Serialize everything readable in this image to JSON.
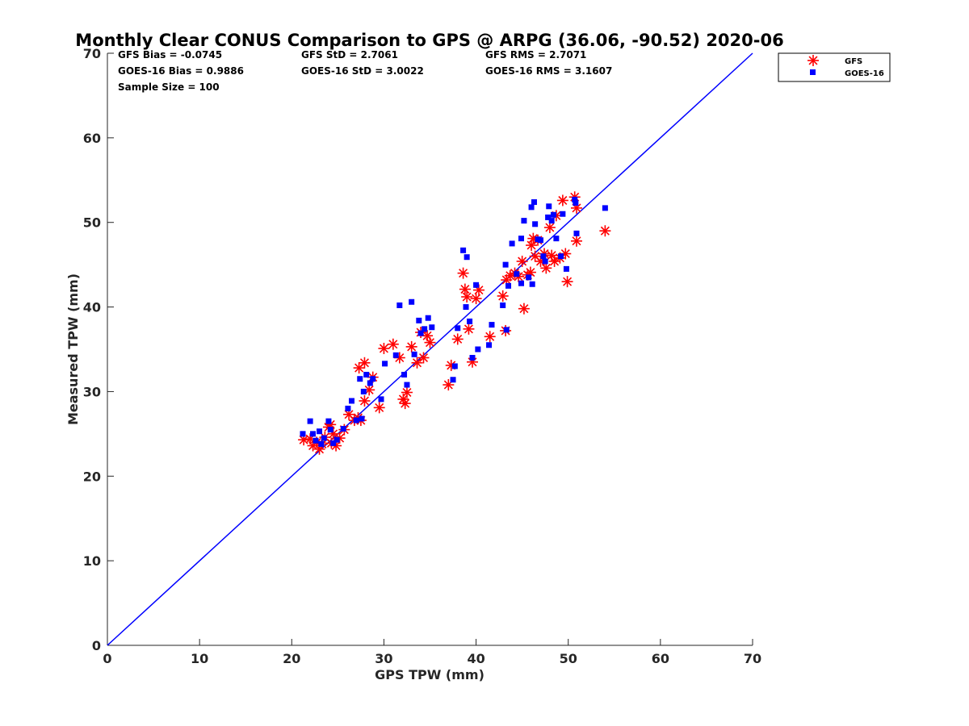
{
  "chart_data": {
    "type": "scatter",
    "title": "Monthly Clear CONUS Comparison to GPS @ ARPG (36.06, -90.52) 2020-06",
    "xlabel": "GPS TPW (mm)",
    "ylabel": "Measured TPW (mm)",
    "xlim": [
      0,
      70
    ],
    "ylim": [
      0,
      70
    ],
    "xticks": [
      "0",
      "10",
      "20",
      "30",
      "40",
      "50",
      "60",
      "70"
    ],
    "yticks": [
      "0",
      "10",
      "20",
      "30",
      "40",
      "50",
      "60",
      "70"
    ],
    "grid": false,
    "legend_position": "top-right outside",
    "stats": {
      "gfs_bias": "GFS Bias = -0.0745",
      "gfs_std": "GFS StD = 2.7061",
      "gfs_rms": "GFS RMS = 2.7071",
      "goes_bias": "GOES-16 Bias = 0.9886",
      "goes_std": "GOES-16 StD = 3.0022",
      "goes_rms": "GOES-16 RMS = 3.1607",
      "sample_size": "Sample Size = 100"
    },
    "reference_line": {
      "name": "1:1",
      "color": "#0000ff",
      "x": [
        0,
        70
      ],
      "y": [
        0,
        70
      ]
    },
    "series": [
      {
        "name": "GFS",
        "marker": "asterisk",
        "color": "#ff0000",
        "points": [
          [
            21.3,
            24.3
          ],
          [
            22.0,
            24.4
          ],
          [
            22.3,
            23.6
          ],
          [
            22.7,
            24.0
          ],
          [
            23.0,
            23.2
          ],
          [
            23.3,
            23.8
          ],
          [
            23.6,
            24.6
          ],
          [
            24.0,
            25.8
          ],
          [
            24.2,
            26.1
          ],
          [
            24.5,
            25.0
          ],
          [
            24.3,
            23.9
          ],
          [
            24.8,
            23.6
          ],
          [
            25.2,
            24.5
          ],
          [
            25.7,
            25.5
          ],
          [
            26.2,
            27.3
          ],
          [
            26.8,
            26.6
          ],
          [
            27.2,
            26.9
          ],
          [
            27.5,
            26.6
          ],
          [
            27.9,
            28.9
          ],
          [
            28.4,
            30.2
          ],
          [
            28.8,
            31.7
          ],
          [
            27.3,
            32.8
          ],
          [
            27.9,
            33.4
          ],
          [
            29.5,
            28.1
          ],
          [
            30.0,
            35.1
          ],
          [
            31.0,
            35.6
          ],
          [
            31.7,
            34.0
          ],
          [
            32.1,
            29.1
          ],
          [
            32.3,
            28.6
          ],
          [
            32.5,
            29.9
          ],
          [
            33.0,
            35.3
          ],
          [
            33.6,
            33.4
          ],
          [
            34.0,
            37.0
          ],
          [
            34.3,
            34.0
          ],
          [
            34.7,
            36.6
          ],
          [
            35.0,
            35.8
          ],
          [
            37.0,
            30.8
          ],
          [
            37.3,
            33.1
          ],
          [
            38.0,
            36.2
          ],
          [
            38.6,
            44.0
          ],
          [
            38.8,
            42.1
          ],
          [
            39.0,
            41.2
          ],
          [
            39.2,
            37.4
          ],
          [
            39.6,
            33.5
          ],
          [
            40.0,
            41.0
          ],
          [
            40.3,
            42.0
          ],
          [
            41.5,
            36.5
          ],
          [
            42.9,
            41.3
          ],
          [
            43.2,
            37.2
          ],
          [
            43.3,
            43.2
          ],
          [
            43.7,
            43.7
          ],
          [
            44.2,
            44.0
          ],
          [
            44.6,
            43.6
          ],
          [
            45.0,
            45.4
          ],
          [
            45.2,
            39.8
          ],
          [
            45.6,
            43.8
          ],
          [
            45.9,
            44.1
          ],
          [
            46.0,
            47.3
          ],
          [
            46.2,
            48.1
          ],
          [
            46.4,
            46.0
          ],
          [
            46.7,
            47.9
          ],
          [
            47.0,
            45.4
          ],
          [
            47.4,
            46.3
          ],
          [
            47.6,
            44.6
          ],
          [
            48.0,
            49.4
          ],
          [
            48.2,
            46.1
          ],
          [
            48.5,
            45.4
          ],
          [
            48.7,
            50.8
          ],
          [
            49.1,
            45.8
          ],
          [
            49.4,
            52.6
          ],
          [
            49.7,
            46.3
          ],
          [
            49.9,
            43.0
          ],
          [
            50.7,
            53.0
          ],
          [
            50.9,
            51.7
          ],
          [
            50.9,
            47.8
          ],
          [
            54.0,
            49.0
          ]
        ]
      },
      {
        "name": "GOES-16",
        "marker": "square",
        "color": "#0000ff",
        "points": [
          [
            21.2,
            25.0
          ],
          [
            22.0,
            26.5
          ],
          [
            22.3,
            25.0
          ],
          [
            22.6,
            24.2
          ],
          [
            23.0,
            25.3
          ],
          [
            23.2,
            23.8
          ],
          [
            23.5,
            24.5
          ],
          [
            24.0,
            26.5
          ],
          [
            24.2,
            25.5
          ],
          [
            24.5,
            23.9
          ],
          [
            24.9,
            24.3
          ],
          [
            25.6,
            25.6
          ],
          [
            26.1,
            28.0
          ],
          [
            26.5,
            28.9
          ],
          [
            27.0,
            26.6
          ],
          [
            27.4,
            31.5
          ],
          [
            27.6,
            26.8
          ],
          [
            27.8,
            30.0
          ],
          [
            28.1,
            32.0
          ],
          [
            28.5,
            31.0
          ],
          [
            28.8,
            31.5
          ],
          [
            29.7,
            29.1
          ],
          [
            30.1,
            33.3
          ],
          [
            31.3,
            34.3
          ],
          [
            31.7,
            40.2
          ],
          [
            32.2,
            32.0
          ],
          [
            32.5,
            30.8
          ],
          [
            33.0,
            40.6
          ],
          [
            33.3,
            34.4
          ],
          [
            33.8,
            38.4
          ],
          [
            34.0,
            36.9
          ],
          [
            34.4,
            37.4
          ],
          [
            34.8,
            38.7
          ],
          [
            35.2,
            37.6
          ],
          [
            37.5,
            31.4
          ],
          [
            37.7,
            33.0
          ],
          [
            38.0,
            37.5
          ],
          [
            38.6,
            46.7
          ],
          [
            38.9,
            40.0
          ],
          [
            39.0,
            45.9
          ],
          [
            39.3,
            38.3
          ],
          [
            39.6,
            34.0
          ],
          [
            40.0,
            42.6
          ],
          [
            40.2,
            35.0
          ],
          [
            41.4,
            35.5
          ],
          [
            41.7,
            37.9
          ],
          [
            42.9,
            40.2
          ],
          [
            43.2,
            45.0
          ],
          [
            43.3,
            37.3
          ],
          [
            43.5,
            42.5
          ],
          [
            43.9,
            47.5
          ],
          [
            44.4,
            43.9
          ],
          [
            44.9,
            48.1
          ],
          [
            44.9,
            42.8
          ],
          [
            45.2,
            50.2
          ],
          [
            45.7,
            43.5
          ],
          [
            46.0,
            51.8
          ],
          [
            46.1,
            42.7
          ],
          [
            46.3,
            52.4
          ],
          [
            46.4,
            49.8
          ],
          [
            46.7,
            48.0
          ],
          [
            47.0,
            47.9
          ],
          [
            47.3,
            46.0
          ],
          [
            47.5,
            45.4
          ],
          [
            47.8,
            50.6
          ],
          [
            47.9,
            51.9
          ],
          [
            48.2,
            50.2
          ],
          [
            48.4,
            50.9
          ],
          [
            48.7,
            48.1
          ],
          [
            49.2,
            46.0
          ],
          [
            49.4,
            51.0
          ],
          [
            49.8,
            44.5
          ],
          [
            50.7,
            52.7
          ],
          [
            50.8,
            52.3
          ],
          [
            50.9,
            48.7
          ],
          [
            54.0,
            51.7
          ]
        ]
      }
    ]
  }
}
